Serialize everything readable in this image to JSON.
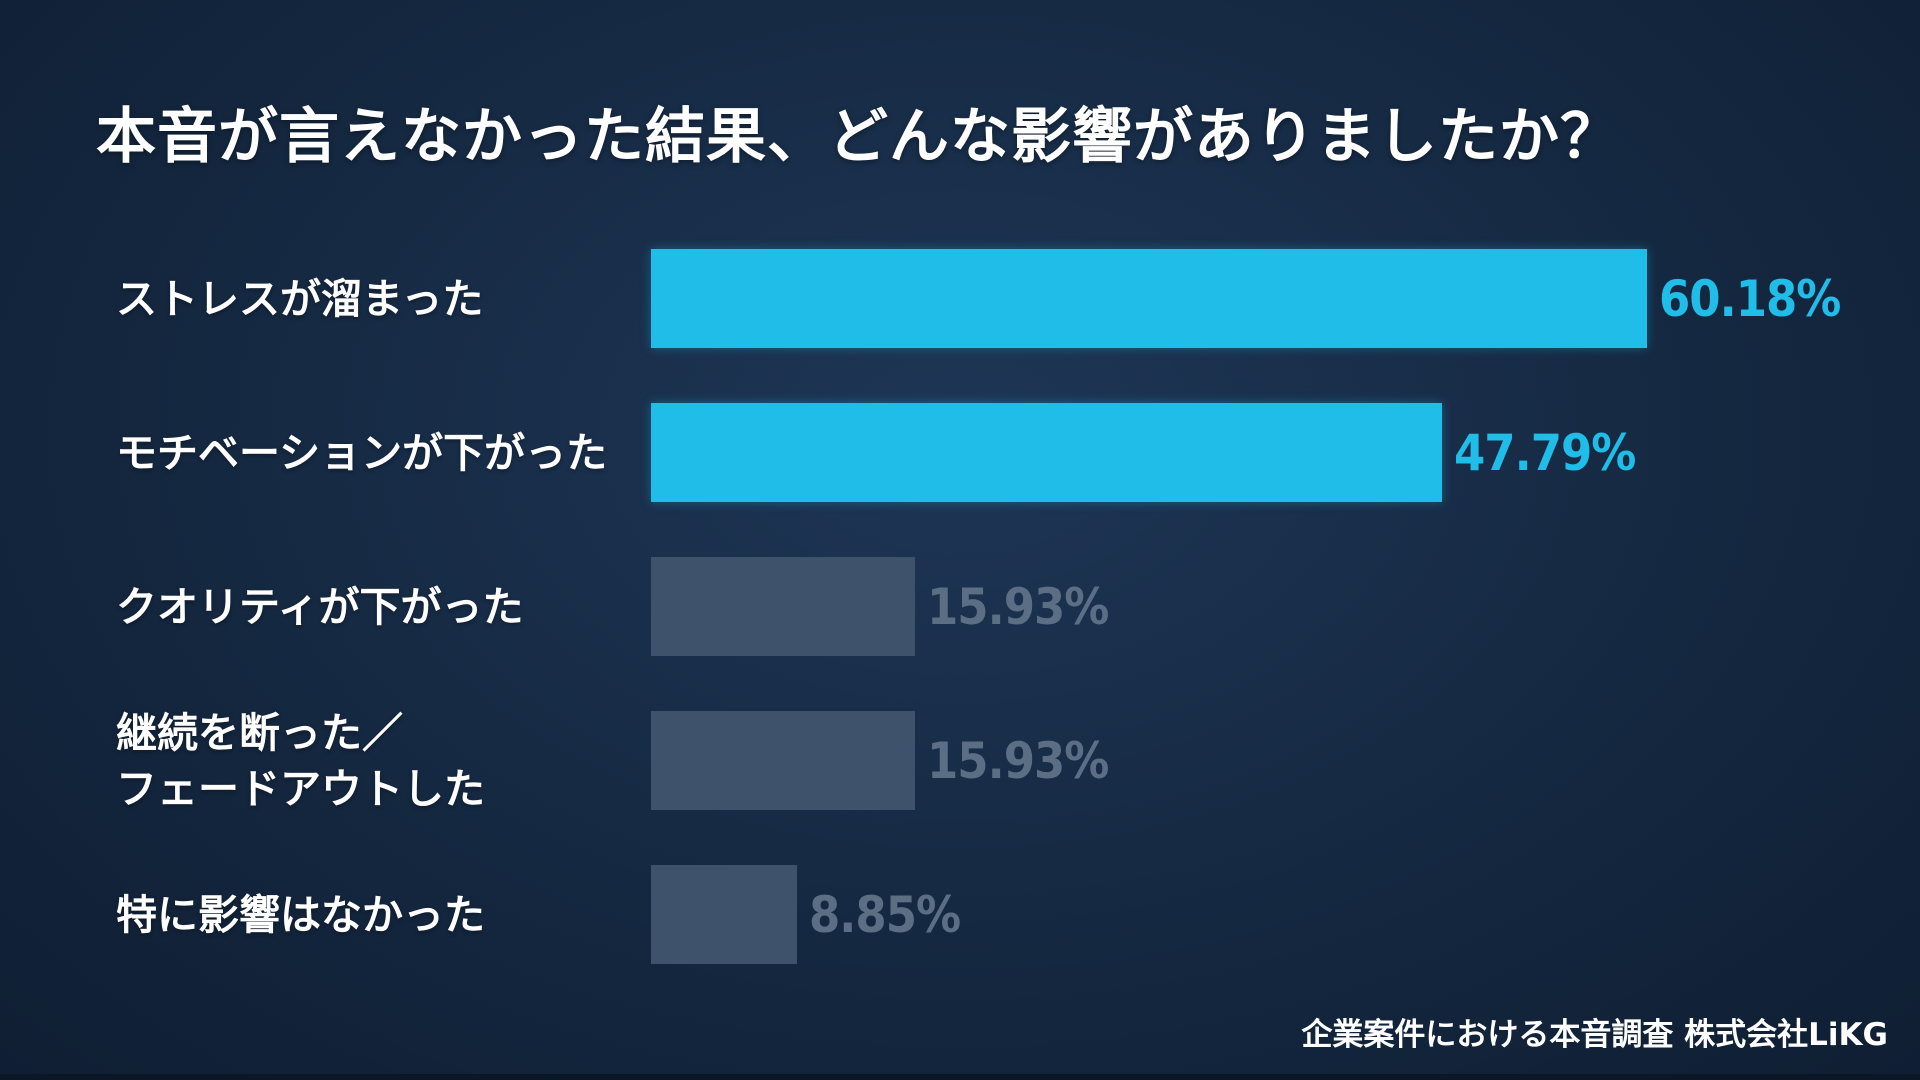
{
  "chart_data": {
    "type": "bar",
    "orientation": "horizontal",
    "title": "本音が言えなかった結果、どんな影響がありましたか？",
    "xlim": [
      0,
      60.18
    ],
    "categories": [
      [
        "ストレスが溜まった"
      ],
      [
        "モチベーションが下がった"
      ],
      [
        "クオリティが下がった"
      ],
      [
        "継続を断った／",
        "フェードアウトした"
      ],
      [
        "特に影響はなかった"
      ]
    ],
    "values": [
      60.18,
      47.79,
      15.93,
      15.93,
      8.85
    ],
    "value_labels": [
      "60.18%",
      "47.79%",
      "15.93%",
      "15.93%",
      "8.85%"
    ],
    "highlighted": [
      true,
      true,
      false,
      false,
      false
    ],
    "colors": {
      "highlight": "#1fbde8",
      "muted_bar": "#3e536b",
      "muted_text": "#5b6e84",
      "background": "#14273f"
    }
  },
  "footer": {
    "source": "企業案件における本音調査 株式会社LiKG"
  }
}
